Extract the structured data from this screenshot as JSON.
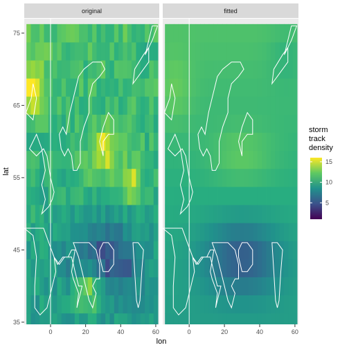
{
  "chart_data": {
    "type": "heatmap",
    "facet_labels": [
      "original",
      "fitted"
    ],
    "xlabel": "lon",
    "ylabel": "lat",
    "xlim": [
      -15,
      62
    ],
    "ylim": [
      34.7,
      77
    ],
    "x_ticks": [
      0,
      20,
      40,
      60
    ],
    "x_tick_labels": [
      "0",
      "20",
      "40",
      "60"
    ],
    "y_ticks": [
      35,
      45,
      55,
      65,
      75
    ],
    "y_tick_labels": [
      "35",
      "45",
      "55",
      "65",
      "75"
    ],
    "grid": true,
    "reference_line_lon": 0,
    "legend": {
      "title_lines": [
        "storm",
        "track",
        "density"
      ],
      "position": "right",
      "min": 1,
      "max": 16,
      "ticks": [
        5,
        10,
        15
      ],
      "tick_labels": [
        "5",
        "10",
        "15"
      ],
      "colormap": "viridis"
    },
    "cell_size_deg": {
      "lon": 2.5,
      "lat": 2.5
    },
    "grid_summary": {
      "lon_range": [
        -12.5,
        60
      ],
      "lat_range": [
        35,
        75
      ],
      "description_values": {
        "original_max_near": {
          "lon": -10,
          "lat": 67.5,
          "value": 15.5
        },
        "original_min_region": {
          "lon": [
            10,
            55
          ],
          "lat": [
            41,
            48
          ],
          "value": 2.5
        }
      }
    }
  },
  "colors": {
    "panel_bg": "#ebebeb",
    "strip_bg": "#d9d9d9",
    "strip_text": "#1a1a1a",
    "axis_text": "#4d4d4d",
    "coastline": "#ffffff"
  }
}
